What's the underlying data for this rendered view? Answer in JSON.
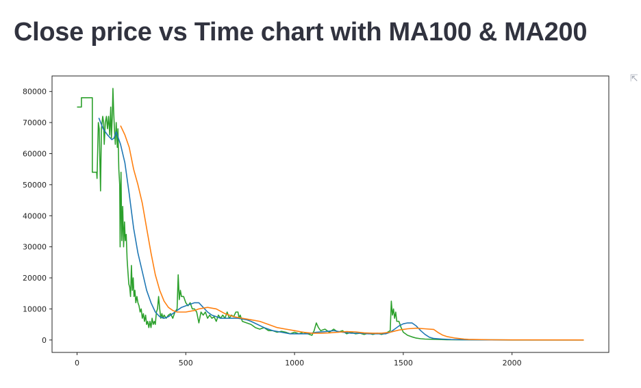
{
  "page": {
    "title": "Close price vs Time chart with MA100 & MA200",
    "fullscreen_icon": "expand-arrow-icon",
    "fullscreen_glyph": "⇱"
  },
  "chart_data": {
    "type": "line",
    "title": "",
    "xlabel": "",
    "ylabel": "",
    "xlim": [
      -115,
      2445
    ],
    "ylim": [
      -4000,
      85000
    ],
    "grid": false,
    "legend": "none",
    "x_ticks": [
      0,
      500,
      1000,
      1500,
      2000
    ],
    "x_tick_labels": [
      "0",
      "500",
      "1000",
      "1500",
      "2000"
    ],
    "y_ticks": [
      0,
      10000,
      20000,
      30000,
      40000,
      50000,
      60000,
      70000,
      80000
    ],
    "y_tick_labels": [
      "0",
      "10000",
      "20000",
      "30000",
      "40000",
      "50000",
      "60000",
      "70000",
      "80000"
    ],
    "series": [
      {
        "color": "#2ca02c",
        "points": [
          [
            0,
            75000
          ],
          [
            20,
            75000
          ],
          [
            20,
            78000
          ],
          [
            70,
            78000
          ],
          [
            70,
            54000
          ],
          [
            90,
            54000
          ],
          [
            92,
            52000
          ],
          [
            98,
            70000
          ],
          [
            102,
            68000
          ],
          [
            108,
            48000
          ],
          [
            112,
            68000
          ],
          [
            118,
            72000
          ],
          [
            122,
            70000
          ],
          [
            125,
            63000
          ],
          [
            130,
            70000
          ],
          [
            135,
            72000
          ],
          [
            140,
            68000
          ],
          [
            145,
            72000
          ],
          [
            150,
            66000
          ],
          [
            155,
            75000
          ],
          [
            158,
            65000
          ],
          [
            162,
            72000
          ],
          [
            165,
            81000
          ],
          [
            168,
            74000
          ],
          [
            172,
            68000
          ],
          [
            176,
            63000
          ],
          [
            180,
            70000
          ],
          [
            185,
            62000
          ],
          [
            188,
            68000
          ],
          [
            192,
            55000
          ],
          [
            196,
            50000
          ],
          [
            198,
            30000
          ],
          [
            202,
            54000
          ],
          [
            206,
            32000
          ],
          [
            210,
            43000
          ],
          [
            214,
            30000
          ],
          [
            218,
            38000
          ],
          [
            222,
            32000
          ],
          [
            226,
            34000
          ],
          [
            230,
            26000
          ],
          [
            234,
            22000
          ],
          [
            238,
            18000
          ],
          [
            242,
            17000
          ],
          [
            246,
            14000
          ],
          [
            250,
            24000
          ],
          [
            254,
            16000
          ],
          [
            258,
            20000
          ],
          [
            262,
            14000
          ],
          [
            266,
            16000
          ],
          [
            270,
            12000
          ],
          [
            275,
            14000
          ],
          [
            280,
            12000
          ],
          [
            285,
            11000
          ],
          [
            290,
            9000
          ],
          [
            295,
            10000
          ],
          [
            300,
            7000
          ],
          [
            305,
            8500
          ],
          [
            310,
            6000
          ],
          [
            315,
            8000
          ],
          [
            320,
            5000
          ],
          [
            325,
            6000
          ],
          [
            330,
            4000
          ],
          [
            335,
            6000
          ],
          [
            340,
            4000
          ],
          [
            345,
            7000
          ],
          [
            350,
            5000
          ],
          [
            355,
            6000
          ],
          [
            360,
            5000
          ],
          [
            365,
            9000
          ],
          [
            370,
            10000
          ],
          [
            375,
            14000
          ],
          [
            380,
            10000
          ],
          [
            385,
            7000
          ],
          [
            390,
            8500
          ],
          [
            395,
            7000
          ],
          [
            400,
            8000
          ],
          [
            410,
            7000
          ],
          [
            420,
            8000
          ],
          [
            430,
            8500
          ],
          [
            440,
            7000
          ],
          [
            450,
            9000
          ],
          [
            460,
            10000
          ],
          [
            465,
            21000
          ],
          [
            470,
            13000
          ],
          [
            475,
            16000
          ],
          [
            480,
            14000
          ],
          [
            490,
            14000
          ],
          [
            500,
            12000
          ],
          [
            510,
            11000
          ],
          [
            520,
            12000
          ],
          [
            530,
            10000
          ],
          [
            540,
            10000
          ],
          [
            550,
            9000
          ],
          [
            560,
            5500
          ],
          [
            570,
            9000
          ],
          [
            580,
            8000
          ],
          [
            590,
            9000
          ],
          [
            600,
            7000
          ],
          [
            610,
            8000
          ],
          [
            620,
            7000
          ],
          [
            630,
            7500
          ],
          [
            640,
            6000
          ],
          [
            650,
            8000
          ],
          [
            660,
            7000
          ],
          [
            670,
            8000
          ],
          [
            680,
            7000
          ],
          [
            690,
            9000
          ],
          [
            700,
            7000
          ],
          [
            710,
            8000
          ],
          [
            720,
            7500
          ],
          [
            730,
            9000
          ],
          [
            740,
            9000
          ],
          [
            745,
            7000
          ],
          [
            750,
            8000
          ],
          [
            760,
            6000
          ],
          [
            780,
            5500
          ],
          [
            800,
            5000
          ],
          [
            820,
            4000
          ],
          [
            840,
            3500
          ],
          [
            860,
            4000
          ],
          [
            880,
            3000
          ],
          [
            900,
            3000
          ],
          [
            920,
            2500
          ],
          [
            940,
            2800
          ],
          [
            960,
            2500
          ],
          [
            980,
            2000
          ],
          [
            1000,
            2500
          ],
          [
            1020,
            2000
          ],
          [
            1040,
            2500
          ],
          [
            1060,
            2000
          ],
          [
            1080,
            1500
          ],
          [
            1090,
            3000
          ],
          [
            1100,
            5500
          ],
          [
            1110,
            4000
          ],
          [
            1120,
            3000
          ],
          [
            1140,
            3500
          ],
          [
            1160,
            2500
          ],
          [
            1180,
            3500
          ],
          [
            1200,
            2500
          ],
          [
            1220,
            3000
          ],
          [
            1240,
            2000
          ],
          [
            1260,
            2500
          ],
          [
            1280,
            2000
          ],
          [
            1300,
            2200
          ],
          [
            1320,
            1800
          ],
          [
            1340,
            2200
          ],
          [
            1360,
            1800
          ],
          [
            1380,
            2200
          ],
          [
            1400,
            1800
          ],
          [
            1420,
            2200
          ],
          [
            1440,
            3000
          ],
          [
            1445,
            12500
          ],
          [
            1450,
            8000
          ],
          [
            1455,
            10000
          ],
          [
            1460,
            7000
          ],
          [
            1465,
            9000
          ],
          [
            1470,
            6000
          ],
          [
            1480,
            6000
          ],
          [
            1490,
            4000
          ],
          [
            1500,
            2500
          ],
          [
            1520,
            1500
          ],
          [
            1540,
            1000
          ],
          [
            1560,
            600
          ],
          [
            1580,
            400
          ],
          [
            1600,
            300
          ],
          [
            1650,
            200
          ],
          [
            1700,
            100
          ],
          [
            1800,
            50
          ],
          [
            1900,
            30
          ],
          [
            2000,
            20
          ],
          [
            2100,
            10
          ],
          [
            2200,
            10
          ],
          [
            2330,
            10
          ]
        ]
      },
      {
        "color": "#1f77b4",
        "points": [
          [
            100,
            71500
          ],
          [
            120,
            68000
          ],
          [
            140,
            66000
          ],
          [
            160,
            64500
          ],
          [
            170,
            65000
          ],
          [
            180,
            67000
          ],
          [
            200,
            63000
          ],
          [
            220,
            57000
          ],
          [
            240,
            47000
          ],
          [
            260,
            36000
          ],
          [
            280,
            28000
          ],
          [
            300,
            22000
          ],
          [
            320,
            16000
          ],
          [
            340,
            12000
          ],
          [
            360,
            9000
          ],
          [
            380,
            7500
          ],
          [
            400,
            7000
          ],
          [
            420,
            7500
          ],
          [
            440,
            8500
          ],
          [
            460,
            9500
          ],
          [
            480,
            10500
          ],
          [
            500,
            11000
          ],
          [
            520,
            11500
          ],
          [
            540,
            12000
          ],
          [
            560,
            12000
          ],
          [
            580,
            10500
          ],
          [
            600,
            9000
          ],
          [
            620,
            8000
          ],
          [
            640,
            7500
          ],
          [
            660,
            7000
          ],
          [
            700,
            7000
          ],
          [
            740,
            7000
          ],
          [
            780,
            6500
          ],
          [
            800,
            6000
          ],
          [
            830,
            5000
          ],
          [
            860,
            4000
          ],
          [
            900,
            3000
          ],
          [
            940,
            2500
          ],
          [
            980,
            2000
          ],
          [
            1020,
            2000
          ],
          [
            1060,
            2000
          ],
          [
            1100,
            2500
          ],
          [
            1140,
            2700
          ],
          [
            1180,
            3000
          ],
          [
            1220,
            2500
          ],
          [
            1260,
            2200
          ],
          [
            1300,
            2200
          ],
          [
            1340,
            2000
          ],
          [
            1380,
            2000
          ],
          [
            1420,
            2000
          ],
          [
            1440,
            2500
          ],
          [
            1460,
            3500
          ],
          [
            1480,
            4500
          ],
          [
            1500,
            5200
          ],
          [
            1520,
            5500
          ],
          [
            1540,
            5500
          ],
          [
            1560,
            4500
          ],
          [
            1580,
            3000
          ],
          [
            1600,
            1800
          ],
          [
            1620,
            900
          ],
          [
            1640,
            500
          ],
          [
            1680,
            300
          ],
          [
            1720,
            150
          ],
          [
            1800,
            50
          ],
          [
            1900,
            30
          ],
          [
            2000,
            20
          ],
          [
            2330,
            10
          ]
        ]
      },
      {
        "color": "#ff7f0e",
        "points": [
          [
            200,
            69000
          ],
          [
            220,
            66000
          ],
          [
            240,
            62000
          ],
          [
            260,
            55000
          ],
          [
            280,
            50000
          ],
          [
            300,
            44000
          ],
          [
            320,
            36000
          ],
          [
            340,
            28000
          ],
          [
            360,
            21000
          ],
          [
            380,
            16000
          ],
          [
            400,
            12500
          ],
          [
            420,
            10500
          ],
          [
            440,
            9500
          ],
          [
            460,
            9000
          ],
          [
            500,
            9000
          ],
          [
            540,
            9500
          ],
          [
            560,
            10000
          ],
          [
            600,
            10500
          ],
          [
            640,
            10000
          ],
          [
            680,
            8500
          ],
          [
            720,
            7500
          ],
          [
            760,
            7000
          ],
          [
            800,
            6500
          ],
          [
            840,
            6000
          ],
          [
            880,
            5000
          ],
          [
            920,
            4000
          ],
          [
            960,
            3500
          ],
          [
            1000,
            3000
          ],
          [
            1040,
            2500
          ],
          [
            1080,
            2200
          ],
          [
            1120,
            2200
          ],
          [
            1160,
            2300
          ],
          [
            1200,
            2500
          ],
          [
            1240,
            2700
          ],
          [
            1280,
            2600
          ],
          [
            1320,
            2300
          ],
          [
            1360,
            2200
          ],
          [
            1400,
            2200
          ],
          [
            1440,
            2500
          ],
          [
            1480,
            3200
          ],
          [
            1520,
            3600
          ],
          [
            1560,
            3800
          ],
          [
            1600,
            3600
          ],
          [
            1640,
            3400
          ],
          [
            1660,
            2400
          ],
          [
            1680,
            1600
          ],
          [
            1700,
            1100
          ],
          [
            1740,
            600
          ],
          [
            1780,
            300
          ],
          [
            1800,
            200
          ],
          [
            1900,
            80
          ],
          [
            2000,
            40
          ],
          [
            2330,
            20
          ]
        ]
      }
    ]
  }
}
